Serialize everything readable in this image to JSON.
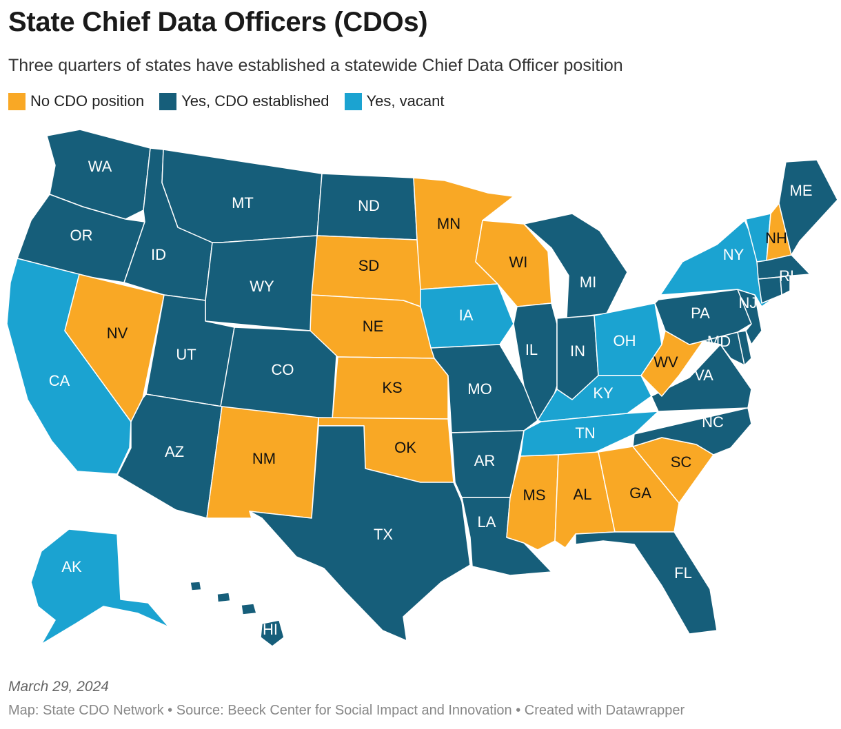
{
  "title": "State Chief Data Officers (CDOs)",
  "subtitle": "Three quarters of states have established a statewide Chief Data Officer position",
  "legend": [
    {
      "label": "No CDO position",
      "status": "none",
      "color": "#f9a825"
    },
    {
      "label": "Yes, CDO established",
      "status": "established",
      "color": "#165e7a"
    },
    {
      "label": "Yes, vacant",
      "status": "vacant",
      "color": "#1ba3d1"
    }
  ],
  "colors": {
    "none": "#f9a825",
    "established": "#165e7a",
    "vacant": "#1ba3d1",
    "border": "#ffffff"
  },
  "states": [
    {
      "code": "WA",
      "status": "established"
    },
    {
      "code": "OR",
      "status": "established"
    },
    {
      "code": "CA",
      "status": "vacant"
    },
    {
      "code": "NV",
      "status": "none"
    },
    {
      "code": "ID",
      "status": "established"
    },
    {
      "code": "MT",
      "status": "established"
    },
    {
      "code": "WY",
      "status": "established"
    },
    {
      "code": "UT",
      "status": "established"
    },
    {
      "code": "CO",
      "status": "established"
    },
    {
      "code": "AZ",
      "status": "established"
    },
    {
      "code": "NM",
      "status": "none"
    },
    {
      "code": "ND",
      "status": "established"
    },
    {
      "code": "SD",
      "status": "none"
    },
    {
      "code": "NE",
      "status": "none"
    },
    {
      "code": "KS",
      "status": "none"
    },
    {
      "code": "OK",
      "status": "none"
    },
    {
      "code": "TX",
      "status": "established"
    },
    {
      "code": "MN",
      "status": "none"
    },
    {
      "code": "IA",
      "status": "vacant"
    },
    {
      "code": "MO",
      "status": "established"
    },
    {
      "code": "AR",
      "status": "established"
    },
    {
      "code": "LA",
      "status": "established"
    },
    {
      "code": "WI",
      "status": "none"
    },
    {
      "code": "IL",
      "status": "established"
    },
    {
      "code": "MI",
      "status": "established"
    },
    {
      "code": "IN",
      "status": "established"
    },
    {
      "code": "OH",
      "status": "vacant"
    },
    {
      "code": "KY",
      "status": "vacant"
    },
    {
      "code": "TN",
      "status": "vacant"
    },
    {
      "code": "MS",
      "status": "none"
    },
    {
      "code": "AL",
      "status": "none"
    },
    {
      "code": "GA",
      "status": "none"
    },
    {
      "code": "FL",
      "status": "established"
    },
    {
      "code": "SC",
      "status": "none"
    },
    {
      "code": "NC",
      "status": "established"
    },
    {
      "code": "VA",
      "status": "established"
    },
    {
      "code": "WV",
      "status": "none"
    },
    {
      "code": "MD",
      "status": "established"
    },
    {
      "code": "DE",
      "status": "established"
    },
    {
      "code": "NJ",
      "status": "established"
    },
    {
      "code": "PA",
      "status": "established"
    },
    {
      "code": "NY",
      "status": "vacant"
    },
    {
      "code": "VT",
      "status": "vacant"
    },
    {
      "code": "NH",
      "status": "none"
    },
    {
      "code": "ME",
      "status": "established"
    },
    {
      "code": "MA",
      "status": "established"
    },
    {
      "code": "CT",
      "status": "established"
    },
    {
      "code": "RI",
      "status": "established"
    },
    {
      "code": "AK",
      "status": "vacant"
    },
    {
      "code": "HI",
      "status": "established"
    }
  ],
  "labels": {
    "WA": "WA",
    "OR": "OR",
    "CA": "CA",
    "NV": "NV",
    "ID": "ID",
    "MT": "MT",
    "WY": "WY",
    "UT": "UT",
    "CO": "CO",
    "AZ": "AZ",
    "NM": "NM",
    "ND": "ND",
    "SD": "SD",
    "NE": "NE",
    "KS": "KS",
    "OK": "OK",
    "TX": "TX",
    "MN": "MN",
    "IA": "IA",
    "MO": "MO",
    "AR": "AR",
    "LA": "LA",
    "WI": "WI",
    "IL": "IL",
    "MI": "MI",
    "IN": "IN",
    "OH": "OH",
    "KY": "KY",
    "TN": "TN",
    "MS": "MS",
    "AL": "AL",
    "GA": "GA",
    "FL": "FL",
    "SC": "SC",
    "NC": "NC",
    "VA": "VA",
    "WV": "WV",
    "MD": "MD",
    "NJ": "NJ",
    "PA": "PA",
    "NY": "NY",
    "NH": "NH",
    "ME": "ME",
    "RI": "RI",
    "AK": "AK",
    "HI": "HI"
  },
  "date": "March 29, 2024",
  "source": "Map: State CDO Network • Source: Beeck Center for Social Impact and Innovation • Created with Datawrapper"
}
